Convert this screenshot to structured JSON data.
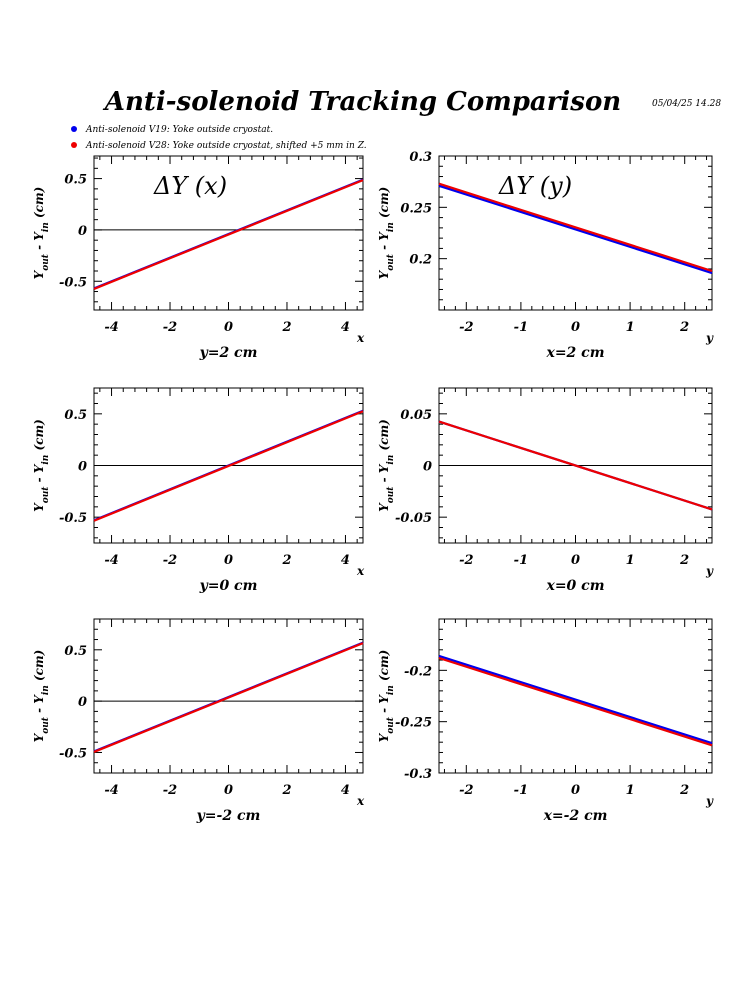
{
  "header": {
    "title": "Anti-solenoid Tracking Comparison",
    "stamp": "05/04/25   14.28"
  },
  "legend": [
    {
      "label": "Anti-solenoid V19: Yoke outside cryostat.",
      "color": "#0000ee"
    },
    {
      "label": "Anti-solenoid V28: Yoke outside cryostat, shifted +5 mm in Z.",
      "color": "#ee0000"
    }
  ],
  "colors": {
    "series_v19": "#0000ee",
    "series_v28": "#ee0000",
    "zero_line": "#000000",
    "frame": "#000000"
  },
  "chart_data": [
    {
      "type": "line",
      "panel": "top-left",
      "annotation": "ΔY (x)",
      "caption": "y=2 cm",
      "xlabel": "x",
      "ylabel": "Y_out - Y_in (cm)",
      "xlim": [
        -4.6,
        4.6
      ],
      "ylim": [
        -0.78,
        0.72
      ],
      "xticks": [
        -4,
        -2,
        0,
        2,
        4
      ],
      "xtick_labels": [
        "-4",
        "-2",
        "0",
        "2",
        "4"
      ],
      "yticks": [
        -0.5,
        0,
        0.5
      ],
      "ytick_labels": [
        "-0.5",
        "0",
        "0.5"
      ],
      "zero_line": true,
      "series": [
        {
          "name": "Anti-solenoid V19: Yoke outside cryostat.",
          "x": [
            -4.6,
            4.6
          ],
          "y": [
            -0.57,
            0.49
          ]
        },
        {
          "name": "Anti-solenoid V28: Yoke outside cryostat, shifted +5 mm in Z.",
          "x": [
            -4.6,
            4.6
          ],
          "y": [
            -0.575,
            0.485
          ]
        }
      ]
    },
    {
      "type": "line",
      "panel": "top-right",
      "annotation": "ΔY (y)",
      "caption": "x=2 cm",
      "xlabel": "y",
      "ylabel": "Y_out - Y_in (cm)",
      "xlim": [
        -2.5,
        2.5
      ],
      "ylim": [
        0.15,
        0.3
      ],
      "xticks": [
        -2,
        -1,
        0,
        1,
        2
      ],
      "xtick_labels": [
        "-2",
        "-1",
        "0",
        "1",
        "2"
      ],
      "yticks": [
        0.2,
        0.25,
        0.3
      ],
      "ytick_labels": [
        "0.2",
        "0.25",
        "0.3"
      ],
      "zero_line": false,
      "series": [
        {
          "name": "Anti-solenoid V19: Yoke outside cryostat.",
          "x": [
            -2.5,
            2.5
          ],
          "y": [
            0.271,
            0.186
          ]
        },
        {
          "name": "Anti-solenoid V28: Yoke outside cryostat, shifted +5 mm in Z.",
          "x": [
            -2.5,
            2.5
          ],
          "y": [
            0.273,
            0.188
          ]
        }
      ]
    },
    {
      "type": "line",
      "panel": "middle-left",
      "annotation": "",
      "caption": "y=0 cm",
      "xlabel": "x",
      "ylabel": "Y_out - Y_in (cm)",
      "xlim": [
        -4.6,
        4.6
      ],
      "ylim": [
        -0.75,
        0.75
      ],
      "xticks": [
        -4,
        -2,
        0,
        2,
        4
      ],
      "xtick_labels": [
        "-4",
        "-2",
        "0",
        "2",
        "4"
      ],
      "yticks": [
        -0.5,
        0,
        0.5
      ],
      "ytick_labels": [
        "-0.5",
        "0",
        "0.5"
      ],
      "zero_line": true,
      "series": [
        {
          "name": "Anti-solenoid V19: Yoke outside cryostat.",
          "x": [
            -4.6,
            4.6
          ],
          "y": [
            -0.53,
            0.53
          ]
        },
        {
          "name": "Anti-solenoid V28: Yoke outside cryostat, shifted +5 mm in Z.",
          "x": [
            -4.6,
            4.6
          ],
          "y": [
            -0.535,
            0.525
          ]
        }
      ]
    },
    {
      "type": "line",
      "panel": "middle-right",
      "annotation": "",
      "caption": "x=0 cm",
      "xlabel": "y",
      "ylabel": "Y_out - Y_in (cm)",
      "xlim": [
        -2.5,
        2.5
      ],
      "ylim": [
        -0.075,
        0.075
      ],
      "xticks": [
        -2,
        -1,
        0,
        1,
        2
      ],
      "xtick_labels": [
        "-2",
        "-1",
        "0",
        "1",
        "2"
      ],
      "yticks": [
        -0.05,
        0,
        0.05
      ],
      "ytick_labels": [
        "-0.05",
        "0",
        "0.05"
      ],
      "zero_line": true,
      "series": [
        {
          "name": "Anti-solenoid V19: Yoke outside cryostat.",
          "x": [
            -2.5,
            2.5
          ],
          "y": [
            0.0425,
            -0.0425
          ]
        },
        {
          "name": "Anti-solenoid V28: Yoke outside cryostat, shifted +5 mm in Z.",
          "x": [
            -2.5,
            2.5
          ],
          "y": [
            0.0425,
            -0.0425
          ]
        }
      ]
    },
    {
      "type": "line",
      "panel": "bottom-left",
      "annotation": "",
      "caption": "y=-2 cm",
      "xlabel": "x",
      "ylabel": "Y_out - Y_in (cm)",
      "xlim": [
        -4.6,
        4.6
      ],
      "ylim": [
        -0.7,
        0.8
      ],
      "xticks": [
        -4,
        -2,
        0,
        2,
        4
      ],
      "xtick_labels": [
        "-4",
        "-2",
        "0",
        "2",
        "4"
      ],
      "yticks": [
        -0.5,
        0,
        0.5
      ],
      "ytick_labels": [
        "-0.5",
        "0",
        "0.5"
      ],
      "zero_line": true,
      "series": [
        {
          "name": "Anti-solenoid V19: Yoke outside cryostat.",
          "x": [
            -4.6,
            4.6
          ],
          "y": [
            -0.49,
            0.57
          ]
        },
        {
          "name": "Anti-solenoid V28: Yoke outside cryostat, shifted +5 mm in Z.",
          "x": [
            -4.6,
            4.6
          ],
          "y": [
            -0.495,
            0.565
          ]
        }
      ]
    },
    {
      "type": "line",
      "panel": "bottom-right",
      "annotation": "",
      "caption": "x=-2 cm",
      "xlabel": "y",
      "ylabel": "Y_out - Y_in (cm)",
      "xlim": [
        -2.5,
        2.5
      ],
      "ylim": [
        -0.3,
        -0.15
      ],
      "xticks": [
        -2,
        -1,
        0,
        1,
        2
      ],
      "xtick_labels": [
        "-2",
        "-1",
        "0",
        "1",
        "2"
      ],
      "yticks": [
        -0.3,
        -0.25,
        -0.2
      ],
      "ytick_labels": [
        "-0.3",
        "-0.25",
        "-0.2"
      ],
      "zero_line": false,
      "series": [
        {
          "name": "Anti-solenoid V19: Yoke outside cryostat.",
          "x": [
            -2.5,
            2.5
          ],
          "y": [
            -0.186,
            -0.271
          ]
        },
        {
          "name": "Anti-solenoid V28: Yoke outside cryostat, shifted +5 mm in Z.",
          "x": [
            -2.5,
            2.5
          ],
          "y": [
            -0.188,
            -0.273
          ]
        }
      ]
    }
  ]
}
